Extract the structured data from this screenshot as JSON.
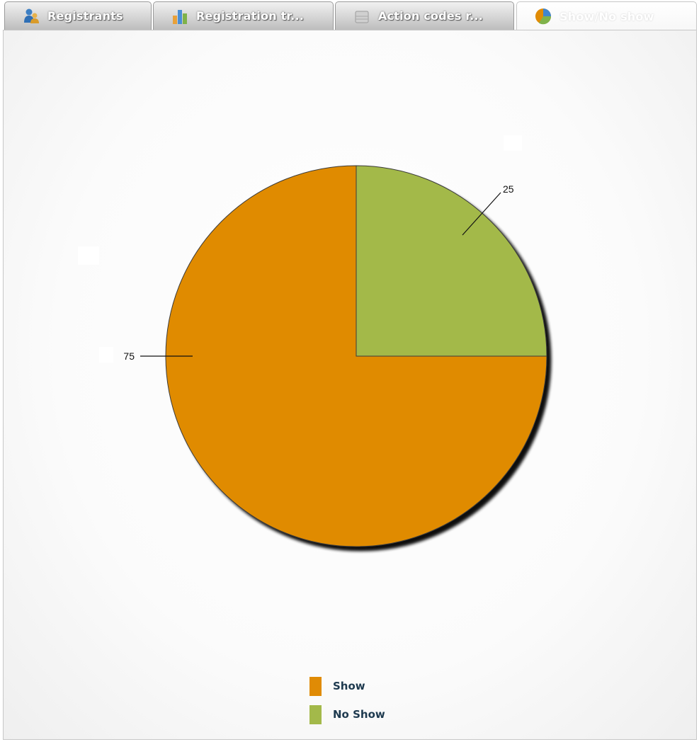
{
  "tabs": [
    {
      "label": "Registrants",
      "icon": "users-icon",
      "active": false
    },
    {
      "label": "Registration tr...",
      "icon": "bar-chart-icon",
      "active": false
    },
    {
      "label": "Action codes r...",
      "icon": "database-icon",
      "active": false
    },
    {
      "label": "Show/No show",
      "icon": "pie-chart-icon",
      "active": true
    }
  ],
  "chart_data": {
    "type": "pie",
    "labels": [
      "Show",
      "No Show"
    ],
    "values": [
      75,
      25
    ],
    "data_labels": [
      "75",
      "25"
    ],
    "colors": [
      "#e08b05",
      "#a3b94a"
    ],
    "legend": {
      "position": "bottom",
      "entries": [
        {
          "label": "Show",
          "color": "#e08b05"
        },
        {
          "label": "No Show",
          "color": "#a3b94a"
        }
      ]
    }
  }
}
